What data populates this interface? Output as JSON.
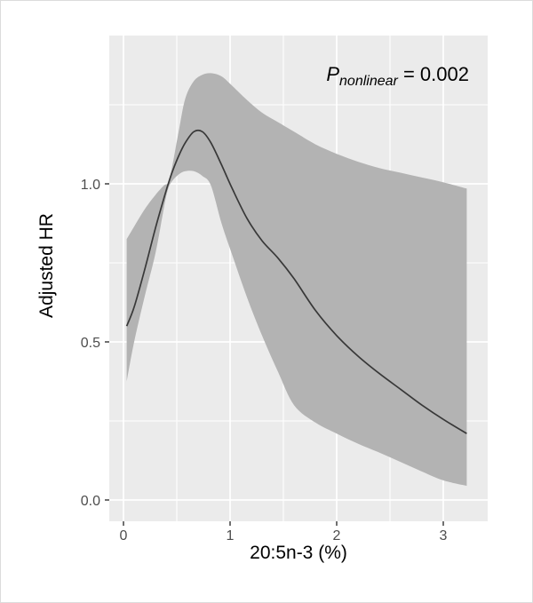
{
  "chart_data": {
    "type": "line",
    "title": "",
    "xlabel": "20:5n-3 (%)",
    "ylabel": "Adjusted HR",
    "xlim": [
      -0.13,
      3.42
    ],
    "ylim": [
      -0.07,
      1.47
    ],
    "grid": true,
    "legend_position": "none",
    "x_ticks": [
      0,
      1,
      2,
      3
    ],
    "x_tick_labels": [
      "0",
      "1",
      "2",
      "3"
    ],
    "y_ticks": [
      0.0,
      0.5,
      1.0
    ],
    "y_tick_labels": [
      "0.0",
      "0.5",
      "1.0"
    ],
    "x_minor_gridlines": [
      0.5,
      1.5,
      2.5
    ],
    "y_minor_gridlines": [
      0.25,
      0.75,
      1.25
    ],
    "annotation": {
      "prefix_italic": "P",
      "subscript_italic": "nonlinear",
      "suffix": " = 0.002"
    },
    "x": [
      0.03,
      0.1,
      0.2,
      0.3,
      0.38,
      0.42,
      0.46,
      0.52,
      0.58,
      0.66,
      0.74,
      0.82,
      0.92,
      1.02,
      1.16,
      1.3,
      1.45,
      1.6,
      1.8,
      2.0,
      2.2,
      2.4,
      2.6,
      2.8,
      3.0,
      3.22
    ],
    "series": [
      {
        "name": "adjusted_hr",
        "values": [
          0.55,
          0.61,
          0.73,
          0.86,
          0.955,
          1.0,
          1.04,
          1.09,
          1.13,
          1.165,
          1.165,
          1.13,
          1.06,
          0.985,
          0.89,
          0.82,
          0.765,
          0.7,
          0.6,
          0.52,
          0.455,
          0.4,
          0.35,
          0.3,
          0.255,
          0.21
        ]
      },
      {
        "name": "ci_upper",
        "values": [
          0.825,
          0.865,
          0.92,
          0.965,
          0.995,
          1.005,
          1.06,
          1.17,
          1.27,
          1.325,
          1.345,
          1.35,
          1.34,
          1.31,
          1.265,
          1.225,
          1.195,
          1.165,
          1.125,
          1.095,
          1.07,
          1.05,
          1.035,
          1.02,
          1.005,
          0.985
        ]
      },
      {
        "name": "ci_lower",
        "values": [
          0.375,
          0.5,
          0.645,
          0.78,
          0.925,
          0.985,
          1.01,
          1.03,
          1.04,
          1.04,
          1.025,
          0.995,
          0.875,
          0.775,
          0.64,
          0.52,
          0.405,
          0.3,
          0.245,
          0.21,
          0.178,
          0.15,
          0.12,
          0.09,
          0.062,
          0.045
        ]
      }
    ],
    "colors": {
      "panel_background": "#EBEBEB",
      "gridline": "#FFFFFF",
      "confidence_band": "#B3B3B3",
      "curve": "#383838",
      "tick_text": "#4D4D4D",
      "tick_mark": "#333333",
      "axis_title": "#000000"
    }
  }
}
